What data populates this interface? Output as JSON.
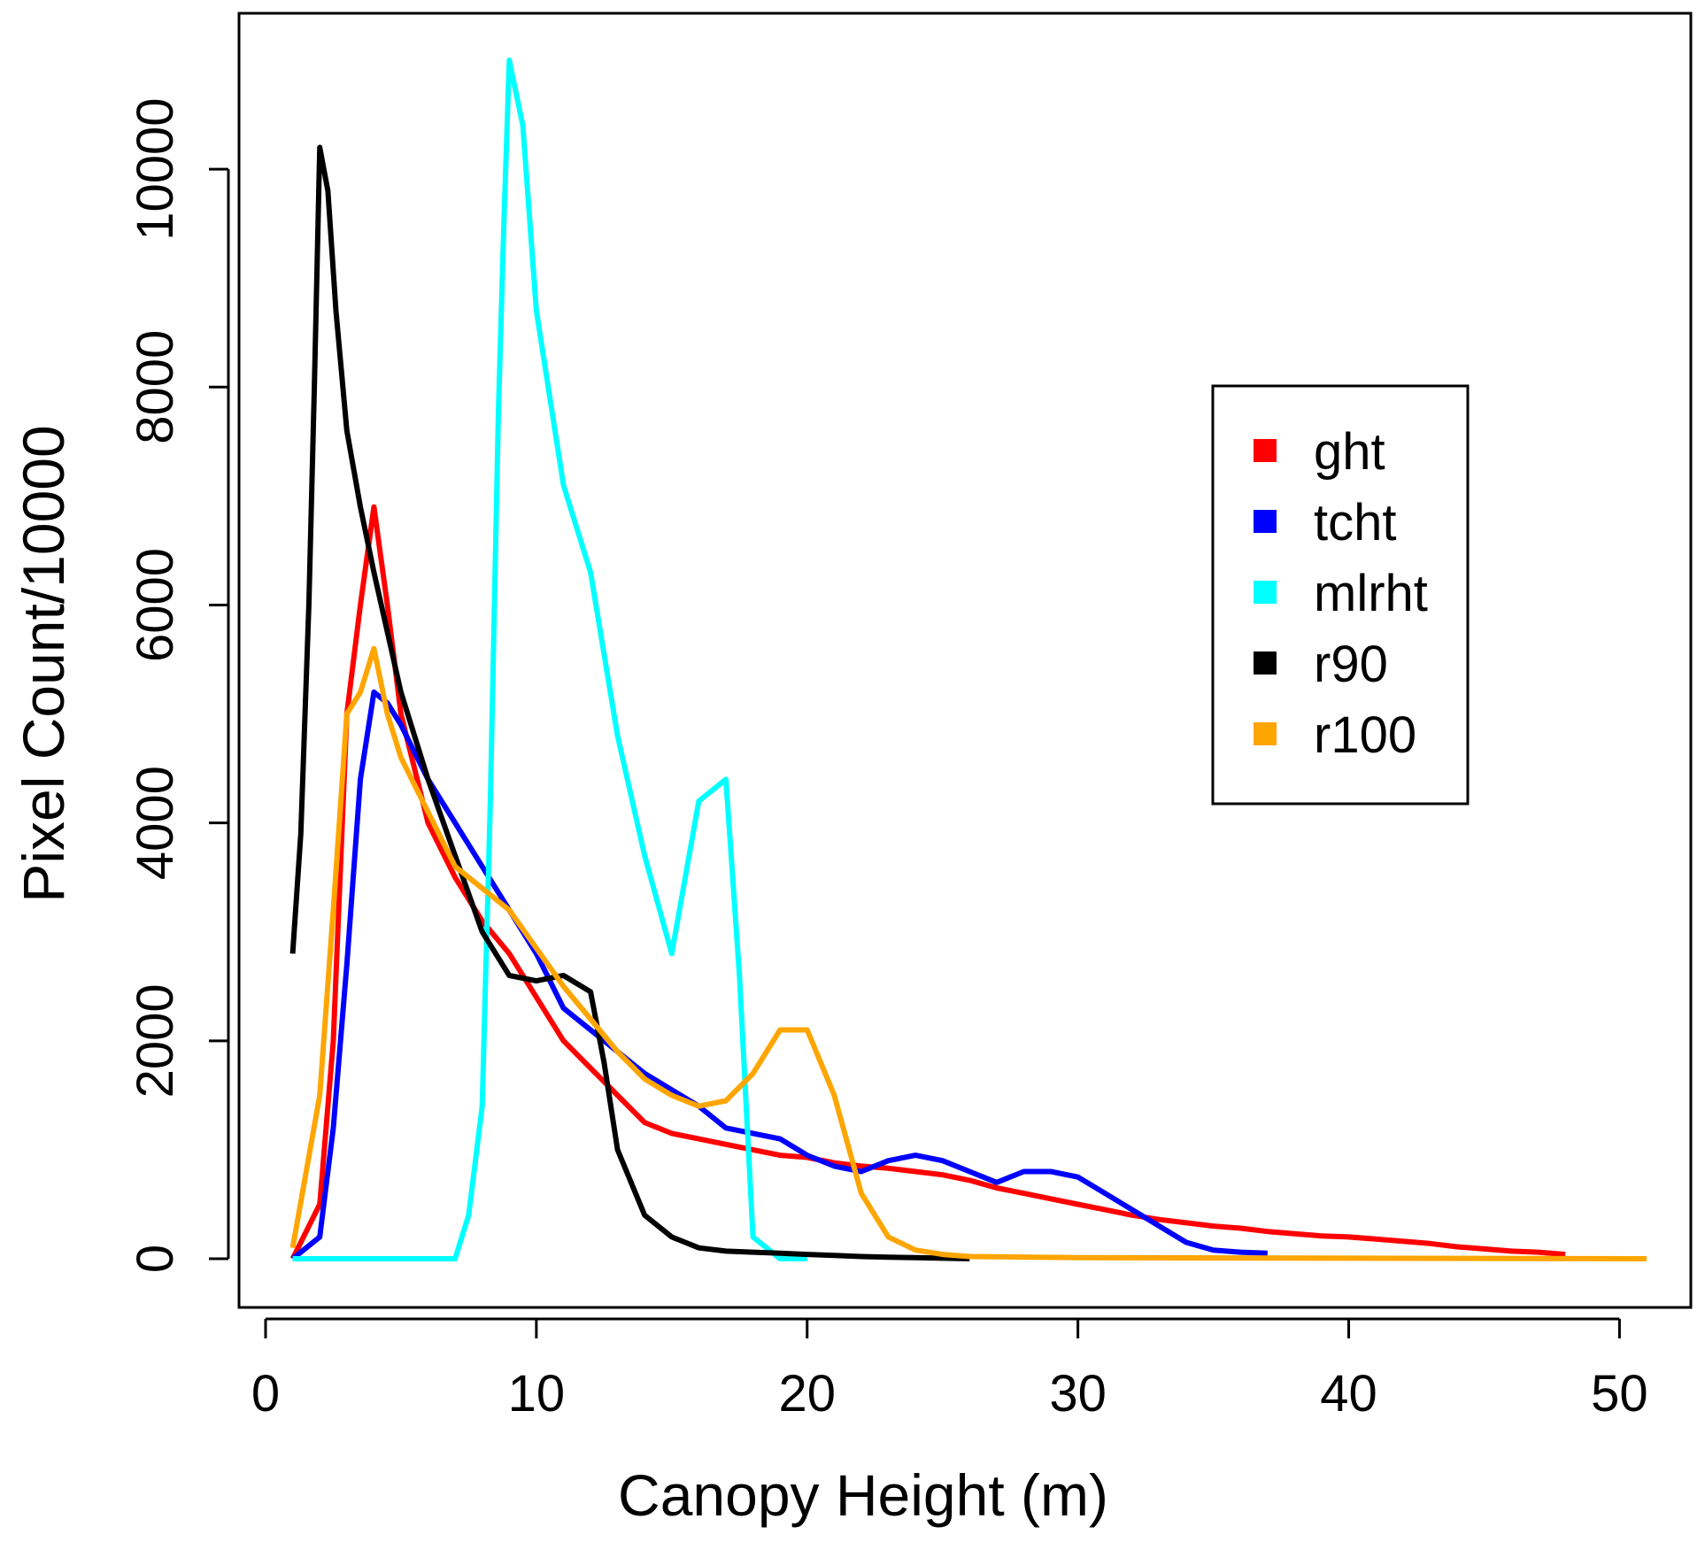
{
  "chart_data": {
    "type": "line",
    "title": "",
    "xlabel": "Canopy Height (m)",
    "ylabel": "Pixel Count/10000",
    "xlim": [
      0,
      51
    ],
    "ylim": [
      0,
      11000
    ],
    "xticks": [
      0,
      10,
      20,
      30,
      40,
      50
    ],
    "yticks": [
      0,
      2000,
      4000,
      6000,
      8000,
      10000
    ],
    "grid": false,
    "legend_position": "right",
    "series": [
      {
        "name": "ght",
        "color": "#ff0000",
        "points": [
          [
            1,
            0
          ],
          [
            2,
            500
          ],
          [
            2.5,
            2000
          ],
          [
            3,
            5000
          ],
          [
            3.5,
            6000
          ],
          [
            4,
            6900
          ],
          [
            4.5,
            6000
          ],
          [
            5,
            5000
          ],
          [
            6,
            4000
          ],
          [
            7,
            3500
          ],
          [
            8,
            3100
          ],
          [
            9,
            2800
          ],
          [
            10,
            2400
          ],
          [
            11,
            2000
          ],
          [
            12,
            1750
          ],
          [
            13,
            1500
          ],
          [
            14,
            1250
          ],
          [
            15,
            1150
          ],
          [
            16,
            1100
          ],
          [
            17,
            1050
          ],
          [
            18,
            1000
          ],
          [
            19,
            950
          ],
          [
            20,
            930
          ],
          [
            21,
            880
          ],
          [
            22,
            850
          ],
          [
            23,
            830
          ],
          [
            24,
            800
          ],
          [
            25,
            770
          ],
          [
            26,
            720
          ],
          [
            27,
            650
          ],
          [
            28,
            600
          ],
          [
            29,
            550
          ],
          [
            30,
            500
          ],
          [
            31,
            450
          ],
          [
            32,
            400
          ],
          [
            33,
            360
          ],
          [
            34,
            330
          ],
          [
            35,
            300
          ],
          [
            36,
            280
          ],
          [
            37,
            250
          ],
          [
            38,
            230
          ],
          [
            39,
            210
          ],
          [
            40,
            200
          ],
          [
            41,
            180
          ],
          [
            42,
            160
          ],
          [
            43,
            140
          ],
          [
            44,
            110
          ],
          [
            45,
            90
          ],
          [
            46,
            70
          ],
          [
            47,
            60
          ],
          [
            48,
            40
          ]
        ]
      },
      {
        "name": "tcht",
        "color": "#0000ff",
        "points": [
          [
            1,
            0
          ],
          [
            2,
            200
          ],
          [
            2.5,
            1200
          ],
          [
            3,
            2700
          ],
          [
            3.5,
            4400
          ],
          [
            4,
            5200
          ],
          [
            4.5,
            5100
          ],
          [
            5,
            4900
          ],
          [
            6,
            4400
          ],
          [
            7,
            4000
          ],
          [
            8,
            3600
          ],
          [
            9,
            3200
          ],
          [
            10,
            2800
          ],
          [
            11,
            2300
          ],
          [
            12,
            2100
          ],
          [
            13,
            1900
          ],
          [
            14,
            1700
          ],
          [
            15,
            1550
          ],
          [
            16,
            1400
          ],
          [
            17,
            1200
          ],
          [
            18,
            1150
          ],
          [
            19,
            1100
          ],
          [
            20,
            950
          ],
          [
            21,
            850
          ],
          [
            22,
            800
          ],
          [
            23,
            900
          ],
          [
            24,
            950
          ],
          [
            25,
            900
          ],
          [
            26,
            800
          ],
          [
            27,
            700
          ],
          [
            28,
            800
          ],
          [
            29,
            800
          ],
          [
            30,
            750
          ],
          [
            31,
            600
          ],
          [
            32,
            450
          ],
          [
            33,
            300
          ],
          [
            34,
            150
          ],
          [
            35,
            80
          ],
          [
            36,
            60
          ],
          [
            37,
            50
          ]
        ]
      },
      {
        "name": "mlrht",
        "color": "#00ffff",
        "points": [
          [
            1,
            0
          ],
          [
            7,
            0
          ],
          [
            7.5,
            400
          ],
          [
            8,
            1400
          ],
          [
            8.3,
            4200
          ],
          [
            8.6,
            7800
          ],
          [
            8.8,
            9500
          ],
          [
            9,
            11000
          ],
          [
            9.5,
            10400
          ],
          [
            10,
            8700
          ],
          [
            11,
            7100
          ],
          [
            12,
            6300
          ],
          [
            13,
            4800
          ],
          [
            14,
            3700
          ],
          [
            15,
            2800
          ],
          [
            16,
            4200
          ],
          [
            17,
            4400
          ],
          [
            17.5,
            2600
          ],
          [
            18,
            200
          ],
          [
            19,
            0
          ],
          [
            20,
            0
          ]
        ]
      },
      {
        "name": "r90",
        "color": "#000000",
        "points": [
          [
            1,
            2800
          ],
          [
            1.3,
            3900
          ],
          [
            1.6,
            6000
          ],
          [
            1.8,
            8000
          ],
          [
            2,
            10200
          ],
          [
            2.3,
            9800
          ],
          [
            2.6,
            8700
          ],
          [
            3,
            7600
          ],
          [
            3.5,
            6900
          ],
          [
            4,
            6300
          ],
          [
            5,
            5200
          ],
          [
            6,
            4400
          ],
          [
            7,
            3700
          ],
          [
            8,
            3000
          ],
          [
            9,
            2600
          ],
          [
            10,
            2550
          ],
          [
            11,
            2600
          ],
          [
            12,
            2450
          ],
          [
            12.5,
            1800
          ],
          [
            13,
            1000
          ],
          [
            14,
            400
          ],
          [
            15,
            200
          ],
          [
            16,
            100
          ],
          [
            17,
            70
          ],
          [
            18,
            60
          ],
          [
            19,
            50
          ],
          [
            20,
            40
          ],
          [
            21,
            30
          ],
          [
            22,
            20
          ],
          [
            23,
            15
          ],
          [
            24,
            10
          ],
          [
            25,
            5
          ],
          [
            26,
            0
          ]
        ]
      },
      {
        "name": "r100",
        "color": "#ffa500",
        "points": [
          [
            1,
            100
          ],
          [
            2,
            1500
          ],
          [
            2.5,
            3200
          ],
          [
            3,
            5000
          ],
          [
            3.5,
            5200
          ],
          [
            4,
            5600
          ],
          [
            4.5,
            5000
          ],
          [
            5,
            4600
          ],
          [
            6,
            4100
          ],
          [
            7,
            3600
          ],
          [
            8,
            3400
          ],
          [
            9,
            3200
          ],
          [
            10,
            2850
          ],
          [
            11,
            2500
          ],
          [
            12,
            2200
          ],
          [
            13,
            1900
          ],
          [
            14,
            1650
          ],
          [
            15,
            1500
          ],
          [
            16,
            1400
          ],
          [
            17,
            1450
          ],
          [
            18,
            1700
          ],
          [
            19,
            2100
          ],
          [
            20,
            2100
          ],
          [
            21,
            1500
          ],
          [
            22,
            600
          ],
          [
            23,
            200
          ],
          [
            24,
            80
          ],
          [
            25,
            40
          ],
          [
            26,
            20
          ],
          [
            30,
            10
          ],
          [
            40,
            5
          ],
          [
            51,
            0
          ]
        ]
      }
    ]
  }
}
